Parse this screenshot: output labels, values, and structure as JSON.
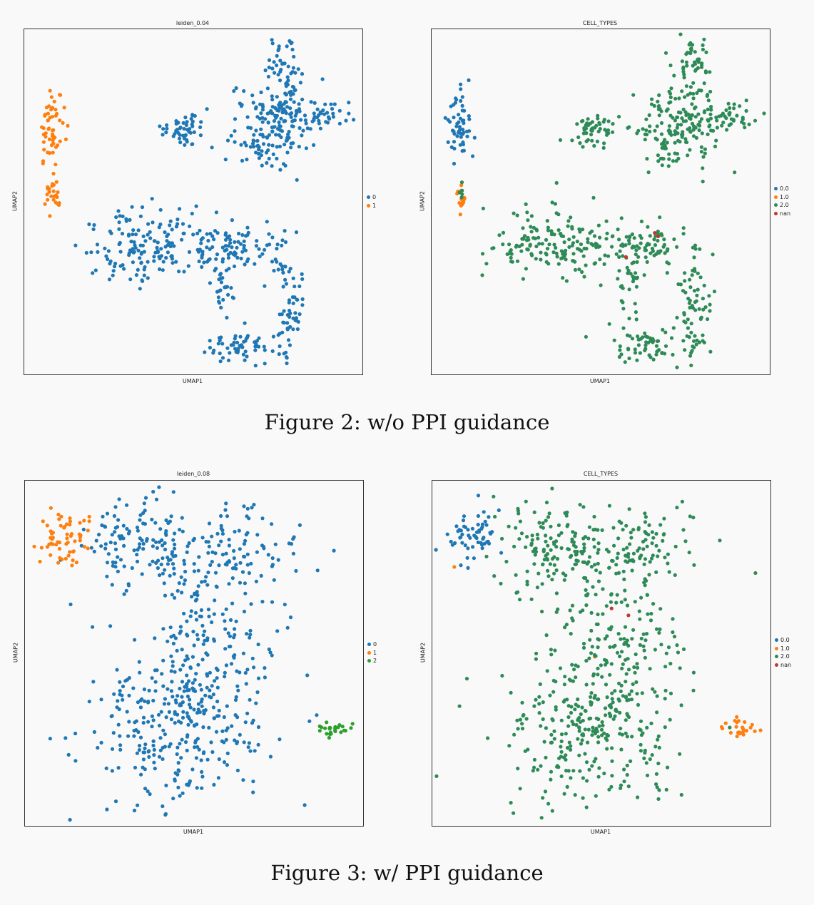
{
  "figures": [
    {
      "caption": "Figure 2: w/o PPI guidance",
      "panels": [
        {
          "title": "leiden_0.04",
          "xlabel": "UMAP1",
          "ylabel": "UMAP2",
          "legend": [
            "0",
            "1"
          ]
        },
        {
          "title": "CELL_TYPES",
          "xlabel": "UMAP1",
          "ylabel": "UMAP2",
          "legend": [
            "0.0",
            "1.0",
            "2.0",
            "nan"
          ]
        }
      ]
    },
    {
      "caption": "Figure 3: w/ PPI guidance",
      "panels": [
        {
          "title": "leiden_0.08",
          "xlabel": "UMAP1",
          "ylabel": "UMAP2",
          "legend": [
            "0",
            "1",
            "2"
          ]
        },
        {
          "title": "CELL_TYPES",
          "xlabel": "UMAP1",
          "ylabel": "UMAP2",
          "legend": [
            "0.0",
            "1.0",
            "2.0",
            "nan"
          ]
        }
      ]
    }
  ],
  "colors": {
    "c0": "#1f77b4",
    "c1": "#ff7f0e",
    "c2": "#2ca02c",
    "c3": "#d62728",
    "green_celltype": "#2e8b57"
  },
  "chart_data": [
    {
      "type": "scatter",
      "title": "leiden_0.04",
      "xlabel": "UMAP1",
      "ylabel": "UMAP2",
      "axis_ticks": "none",
      "grid": false,
      "legend_position": "right",
      "series": [
        {
          "name": "0",
          "color": "#1f77b4",
          "clusters": [
            {
              "cx": 0.77,
              "cy": 0.87,
              "sx": 0.025,
              "sy": 0.08,
              "n": 70
            },
            {
              "cx": 0.72,
              "cy": 0.71,
              "sx": 0.06,
              "sy": 0.06,
              "n": 150
            },
            {
              "cx": 0.87,
              "cy": 0.75,
              "sx": 0.05,
              "sy": 0.02,
              "n": 45
            },
            {
              "cx": 0.48,
              "cy": 0.71,
              "sx": 0.03,
              "sy": 0.025,
              "n": 50
            },
            {
              "cx": 0.36,
              "cy": 0.38,
              "sx": 0.1,
              "sy": 0.05,
              "n": 160
            },
            {
              "cx": 0.62,
              "cy": 0.37,
              "sx": 0.06,
              "sy": 0.035,
              "n": 80
            },
            {
              "cx": 0.59,
              "cy": 0.25,
              "sx": 0.02,
              "sy": 0.04,
              "n": 25
            },
            {
              "cx": 0.63,
              "cy": 0.08,
              "sx": 0.05,
              "sy": 0.025,
              "n": 60
            },
            {
              "cx": 0.78,
              "cy": 0.19,
              "sx": 0.025,
              "sy": 0.09,
              "n": 70
            }
          ]
        },
        {
          "name": "1",
          "color": "#ff7f0e",
          "clusters": [
            {
              "cx": 0.08,
              "cy": 0.72,
              "sx": 0.018,
              "sy": 0.055,
              "n": 55
            },
            {
              "cx": 0.085,
              "cy": 0.52,
              "sx": 0.01,
              "sy": 0.03,
              "n": 25
            }
          ]
        }
      ]
    },
    {
      "type": "scatter",
      "title": "CELL_TYPES",
      "xlabel": "UMAP1",
      "ylabel": "UMAP2",
      "axis_ticks": "none",
      "grid": false,
      "legend_position": "right",
      "series": [
        {
          "name": "0.0",
          "color": "#1f77b4",
          "clusters": [
            {
              "cx": 0.08,
              "cy": 0.72,
              "sx": 0.018,
              "sy": 0.055,
              "n": 55
            }
          ]
        },
        {
          "name": "1.0",
          "color": "#ff7f0e",
          "clusters": [
            {
              "cx": 0.085,
              "cy": 0.5,
              "sx": 0.008,
              "sy": 0.02,
              "n": 15
            }
          ]
        },
        {
          "name": "2.0",
          "color": "#2e8b57",
          "clusters": [
            {
              "cx": 0.77,
              "cy": 0.87,
              "sx": 0.025,
              "sy": 0.08,
              "n": 70
            },
            {
              "cx": 0.72,
              "cy": 0.71,
              "sx": 0.06,
              "sy": 0.06,
              "n": 150
            },
            {
              "cx": 0.87,
              "cy": 0.75,
              "sx": 0.05,
              "sy": 0.02,
              "n": 45
            },
            {
              "cx": 0.48,
              "cy": 0.71,
              "sx": 0.03,
              "sy": 0.025,
              "n": 50
            },
            {
              "cx": 0.36,
              "cy": 0.38,
              "sx": 0.1,
              "sy": 0.05,
              "n": 160
            },
            {
              "cx": 0.62,
              "cy": 0.37,
              "sx": 0.06,
              "sy": 0.035,
              "n": 80
            },
            {
              "cx": 0.59,
              "cy": 0.25,
              "sx": 0.02,
              "sy": 0.04,
              "n": 25
            },
            {
              "cx": 0.63,
              "cy": 0.08,
              "sx": 0.05,
              "sy": 0.025,
              "n": 60
            },
            {
              "cx": 0.78,
              "cy": 0.19,
              "sx": 0.025,
              "sy": 0.09,
              "n": 70
            },
            {
              "cx": 0.085,
              "cy": 0.53,
              "sx": 0.006,
              "sy": 0.01,
              "n": 5
            }
          ]
        },
        {
          "name": "nan",
          "color": "#c0392b",
          "points": [
            [
              0.66,
              0.41
            ],
            [
              0.575,
              0.34
            ],
            [
              0.67,
              0.4
            ]
          ]
        }
      ]
    },
    {
      "type": "scatter",
      "title": "leiden_0.08",
      "xlabel": "UMAP1",
      "ylabel": "UMAP2",
      "axis_ticks": "none",
      "grid": false,
      "legend_position": "right",
      "series": [
        {
          "name": "0",
          "color": "#1f77b4",
          "clusters": [
            {
              "cx": 0.35,
              "cy": 0.82,
              "sx": 0.1,
              "sy": 0.07,
              "n": 130
            },
            {
              "cx": 0.6,
              "cy": 0.8,
              "sx": 0.1,
              "sy": 0.06,
              "n": 110
            },
            {
              "cx": 0.56,
              "cy": 0.57,
              "sx": 0.09,
              "sy": 0.08,
              "n": 110
            },
            {
              "cx": 0.46,
              "cy": 0.3,
              "sx": 0.13,
              "sy": 0.12,
              "n": 330
            }
          ]
        },
        {
          "name": "1",
          "color": "#ff7f0e",
          "clusters": [
            {
              "cx": 0.12,
              "cy": 0.84,
              "sx": 0.04,
              "sy": 0.04,
              "n": 60
            }
          ]
        },
        {
          "name": "2",
          "color": "#2ca02c",
          "clusters": [
            {
              "cx": 0.91,
              "cy": 0.28,
              "sx": 0.025,
              "sy": 0.012,
              "n": 25
            }
          ]
        }
      ]
    },
    {
      "type": "scatter",
      "title": "CELL_TYPES",
      "xlabel": "UMAP1",
      "ylabel": "UMAP2",
      "axis_ticks": "none",
      "grid": false,
      "legend_position": "right",
      "series": [
        {
          "name": "0.0",
          "color": "#1f77b4",
          "clusters": [
            {
              "cx": 0.12,
              "cy": 0.84,
              "sx": 0.04,
              "sy": 0.04,
              "n": 60
            }
          ]
        },
        {
          "name": "1.0",
          "color": "#ff7f0e",
          "clusters": [
            {
              "cx": 0.91,
              "cy": 0.28,
              "sx": 0.025,
              "sy": 0.012,
              "n": 25
            }
          ],
          "points": [
            [
              0.065,
              0.75
            ],
            [
              0.48,
              0.49
            ]
          ]
        },
        {
          "name": "2.0",
          "color": "#2e8b57",
          "clusters": [
            {
              "cx": 0.35,
              "cy": 0.82,
              "sx": 0.1,
              "sy": 0.07,
              "n": 130
            },
            {
              "cx": 0.6,
              "cy": 0.8,
              "sx": 0.1,
              "sy": 0.06,
              "n": 110
            },
            {
              "cx": 0.56,
              "cy": 0.57,
              "sx": 0.09,
              "sy": 0.08,
              "n": 110
            },
            {
              "cx": 0.46,
              "cy": 0.3,
              "sx": 0.13,
              "sy": 0.12,
              "n": 330
            }
          ]
        },
        {
          "name": "nan",
          "color": "#c0392b",
          "points": [
            [
              0.53,
              0.63
            ],
            [
              0.58,
              0.61
            ]
          ]
        }
      ]
    }
  ]
}
